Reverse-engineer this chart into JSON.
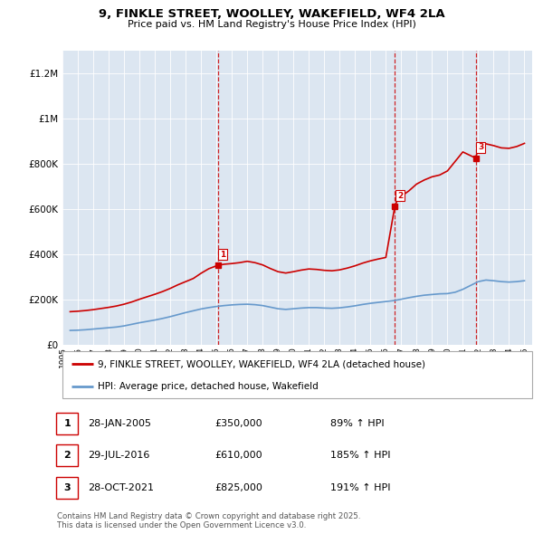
{
  "title": "9, FINKLE STREET, WOOLLEY, WAKEFIELD, WF4 2LA",
  "subtitle": "Price paid vs. HM Land Registry's House Price Index (HPI)",
  "hpi_label": "HPI: Average price, detached house, Wakefield",
  "property_label": "9, FINKLE STREET, WOOLLEY, WAKEFIELD, WF4 2LA (detached house)",
  "footer": "Contains HM Land Registry data © Crown copyright and database right 2025.\nThis data is licensed under the Open Government Licence v3.0.",
  "sale_dates_num": [
    2005.08,
    2016.58,
    2021.83
  ],
  "sale_prices": [
    350000,
    610000,
    825000
  ],
  "sale_labels": [
    "1",
    "2",
    "3"
  ],
  "sale_info": [
    {
      "num": "1",
      "date": "28-JAN-2005",
      "price": "£350,000",
      "hpi": "89% ↑ HPI"
    },
    {
      "num": "2",
      "date": "29-JUL-2016",
      "price": "£610,000",
      "hpi": "185% ↑ HPI"
    },
    {
      "num": "3",
      "date": "28-OCT-2021",
      "price": "£825,000",
      "hpi": "191% ↑ HPI"
    }
  ],
  "property_color": "#cc0000",
  "hpi_color": "#6699cc",
  "vline_color": "#cc0000",
  "bg_color": "#dce6f1",
  "ylim": [
    0,
    1300000
  ],
  "yticks": [
    0,
    200000,
    400000,
    600000,
    800000,
    1000000,
    1200000
  ],
  "ytick_labels": [
    "£0",
    "£200K",
    "£400K",
    "£600K",
    "£800K",
    "£1M",
    "£1.2M"
  ],
  "hpi_data_x": [
    1995.5,
    1996.0,
    1996.5,
    1997.0,
    1997.5,
    1998.0,
    1998.5,
    1999.0,
    1999.5,
    2000.0,
    2000.5,
    2001.0,
    2001.5,
    2002.0,
    2002.5,
    2003.0,
    2003.5,
    2004.0,
    2004.5,
    2005.0,
    2005.5,
    2006.0,
    2006.5,
    2007.0,
    2007.5,
    2008.0,
    2008.5,
    2009.0,
    2009.5,
    2010.0,
    2010.5,
    2011.0,
    2011.5,
    2012.0,
    2012.5,
    2013.0,
    2013.5,
    2014.0,
    2014.5,
    2015.0,
    2015.5,
    2016.0,
    2016.5,
    2017.0,
    2017.5,
    2018.0,
    2018.5,
    2019.0,
    2019.5,
    2020.0,
    2020.5,
    2021.0,
    2021.5,
    2022.0,
    2022.5,
    2023.0,
    2023.5,
    2024.0,
    2024.5,
    2025.0
  ],
  "hpi_data_y": [
    62000,
    63000,
    65000,
    68000,
    71000,
    74000,
    77000,
    82000,
    89000,
    96000,
    102000,
    108000,
    115000,
    123000,
    132000,
    141000,
    149000,
    157000,
    163000,
    168000,
    172000,
    175000,
    177000,
    178000,
    176000,
    172000,
    165000,
    158000,
    155000,
    158000,
    161000,
    163000,
    163000,
    161000,
    160000,
    162000,
    166000,
    171000,
    177000,
    182000,
    186000,
    190000,
    194000,
    200000,
    207000,
    213000,
    218000,
    221000,
    224000,
    225000,
    231000,
    244000,
    261000,
    278000,
    285000,
    282000,
    278000,
    276000,
    278000,
    282000
  ],
  "property_data_x": [
    1995.5,
    1996.0,
    1996.5,
    1997.0,
    1997.5,
    1998.0,
    1998.5,
    1999.0,
    1999.5,
    2000.0,
    2000.5,
    2001.0,
    2001.5,
    2002.0,
    2002.5,
    2003.0,
    2003.5,
    2004.0,
    2004.5,
    2005.08,
    2005.5,
    2006.0,
    2006.5,
    2007.0,
    2007.5,
    2008.0,
    2008.5,
    2009.0,
    2009.5,
    2010.0,
    2010.5,
    2011.0,
    2011.5,
    2012.0,
    2012.5,
    2013.0,
    2013.5,
    2014.0,
    2014.5,
    2015.0,
    2015.5,
    2016.0,
    2016.58,
    2016.75,
    2017.0,
    2017.5,
    2018.0,
    2018.5,
    2019.0,
    2019.5,
    2020.0,
    2020.5,
    2021.0,
    2021.83,
    2022.0,
    2022.5,
    2023.0,
    2023.5,
    2024.0,
    2024.5,
    2025.0
  ],
  "property_data_y": [
    145000,
    147000,
    150000,
    154000,
    159000,
    164000,
    170000,
    178000,
    188000,
    200000,
    211000,
    222000,
    234000,
    248000,
    264000,
    278000,
    292000,
    315000,
    335000,
    350000,
    355000,
    358000,
    362000,
    368000,
    362000,
    352000,
    336000,
    322000,
    316000,
    322000,
    329000,
    334000,
    332000,
    328000,
    326000,
    330000,
    338000,
    348000,
    360000,
    370000,
    378000,
    385000,
    610000,
    640000,
    655000,
    680000,
    710000,
    728000,
    742000,
    750000,
    768000,
    810000,
    852000,
    825000,
    868000,
    888000,
    880000,
    870000,
    868000,
    876000,
    890000
  ],
  "xlim": [
    1995.0,
    2025.5
  ]
}
